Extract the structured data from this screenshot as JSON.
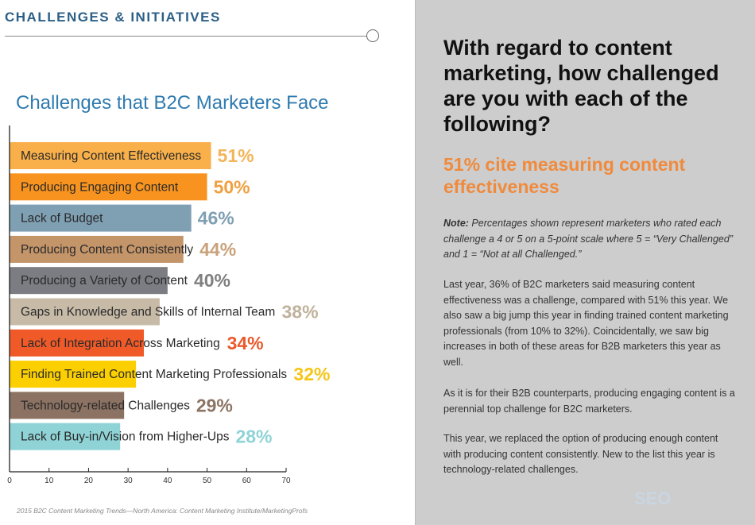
{
  "header": {
    "section": "CHALLENGES & INITIATIVES"
  },
  "chart_data": {
    "type": "bar",
    "orientation": "horizontal",
    "title": "Challenges that B2C Marketers Face",
    "categories": [
      "Measuring Content Effectiveness",
      "Producing Engaging Content",
      "Lack of Budget",
      "Producing Content Consistently",
      "Producing a Variety of Content",
      "Gaps in Knowledge and Skills of Internal Team",
      "Lack of Integration Across Marketing",
      "Finding Trained Content Marketing Professionals",
      "Technology-related Challenges",
      "Lack of Buy-in/Vision from Higher-Ups"
    ],
    "values": [
      51,
      50,
      46,
      44,
      40,
      38,
      34,
      32,
      29,
      28
    ],
    "value_labels": [
      "51%",
      "50%",
      "46%",
      "44%",
      "40%",
      "38%",
      "34%",
      "32%",
      "29%",
      "28%"
    ],
    "colors": [
      "#f9b04a",
      "#f7931e",
      "#7f9fb3",
      "#c5956a",
      "#7b7d82",
      "#c7bba8",
      "#f05a28",
      "#fcd000",
      "#8b7262",
      "#8fd3d6"
    ],
    "label_colors": [
      "#f4b459",
      "#f0a040",
      "#7f9fb3",
      "#c9a27b",
      "#808080",
      "#c0b29c",
      "#ea5a2c",
      "#f5c518",
      "#8c7464",
      "#8fd3d6"
    ],
    "xlim": [
      0,
      70
    ],
    "xticks": [
      "0",
      "10",
      "20",
      "30",
      "40",
      "50",
      "60",
      "70"
    ],
    "grid": false,
    "source": "2015 B2C Content Marketing Trends—North America: Content Marketing Institute/MarketingProfs"
  },
  "panel": {
    "question": "With regard to content marketing, how challenged are you with each of the following?",
    "highlight": "51% cite measuring content effectiveness",
    "note_label": "Note:",
    "note": " Percentages shown represent marketers who rated each challenge a 4 or 5 on a 5-point scale where 5 = “Very Challenged” and 1 = “Not at all Challenged.”",
    "p1": "Last year, 36% of B2C marketers said measuring content effectiveness was a challenge, compared with 51% this year. We also saw a big jump this year in finding trained content marketing professionals (from 10% to 32%). Coincidentally, we saw big increases in both of these areas for B2B marketers this year as well.",
    "p2": "As it is for their B2B counterparts, producing engaging content is a perennial top challenge for B2C marketers.",
    "p3": "This year, we replaced the option of producing enough content with producing content consistently. New to the list this year is technology-related challenges."
  },
  "watermark": "SEO研究协会网 www.seoxiehui.cn"
}
